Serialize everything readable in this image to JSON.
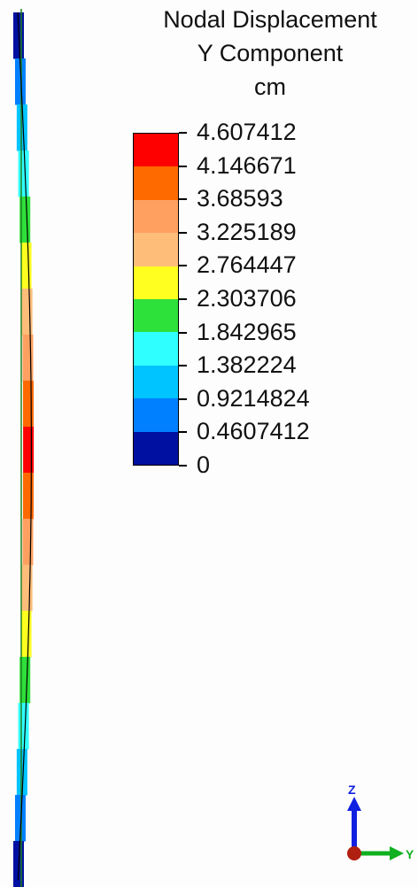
{
  "legend": {
    "title_lines": [
      "Nodal Displacement",
      "Y Component",
      "cm"
    ],
    "labels": [
      "4.607412",
      "4.146671",
      "3.68593",
      "3.225189",
      "2.764447",
      "2.303706",
      "1.842965",
      "1.382224",
      "0.9214824",
      "0.4607412",
      "0"
    ],
    "colors": [
      "#ff0000",
      "#ff6a00",
      "#ffa060",
      "#ffbd7a",
      "#ffff20",
      "#2ee03a",
      "#30ffff",
      "#00c4ff",
      "#0080ff",
      "#0010a0"
    ]
  },
  "model": {
    "mesh_colors_top_to_bottom": [
      "#0010a0",
      "#0080ff",
      "#00c4ff",
      "#30ffff",
      "#2ee03a",
      "#ffff20",
      "#ffbd7a",
      "#ffa060",
      "#ff6a00",
      "#ff0000",
      "#ff6a00",
      "#ffa060",
      "#ffbd7a",
      "#ffff20",
      "#2ee03a",
      "#30ffff",
      "#00c4ff",
      "#0080ff",
      "#0010a0"
    ]
  },
  "triad": {
    "z_label": "Z",
    "y_label": "Y",
    "z_color": "#1020e0",
    "y_color": "#10b020",
    "origin_color": "#b02010"
  }
}
